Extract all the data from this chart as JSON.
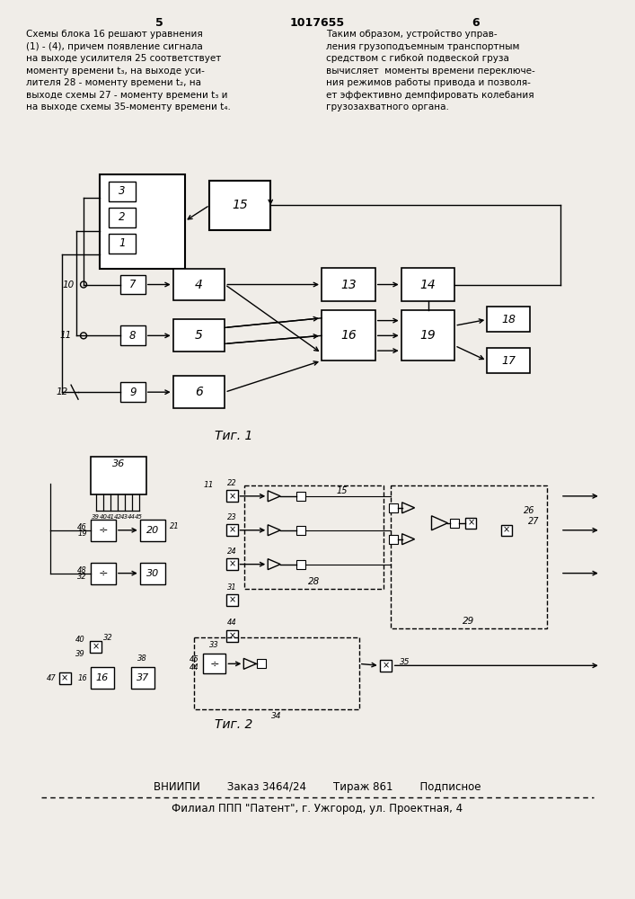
{
  "page_width": 7.07,
  "page_height": 10.0,
  "bg_color": "#f0ede8",
  "header_num_left": "5",
  "header_patent": "1017655",
  "header_num_right": "6",
  "left_text_lines": [
    "Схемы блока 16 решают уравнения",
    "(1) - (4), причем появление сигнала",
    "на выходе усилителя 25 соответствует",
    "моменту времени t₃, на выходе уси-",
    "лителя 28 - моменту времени t₂, на",
    "выходе схемы 27 - моменту времени t₃ и",
    "на выходе схемы 35-моменту времени t₄."
  ],
  "right_text_lines": [
    "Таким образом, устройство управ-",
    "ления грузоподъемным транспортным",
    "средством с гибкой подвеской груза",
    "вычисляет  моменты времени переключе-",
    "ния режимов работы привода и позволя-",
    "ет эффективно демпфировать колебания",
    "грузозахватного органа."
  ],
  "fig1_caption": "Τиг. 1",
  "fig2_caption": "Τиг. 2",
  "footer_line1": "ВНИИПИ        Заказ 3464/24        Тираж 861        Подписное",
  "footer_line2": "Филиал ППП \"Патент\", г. Ужгород, ул. Проектная, 4"
}
